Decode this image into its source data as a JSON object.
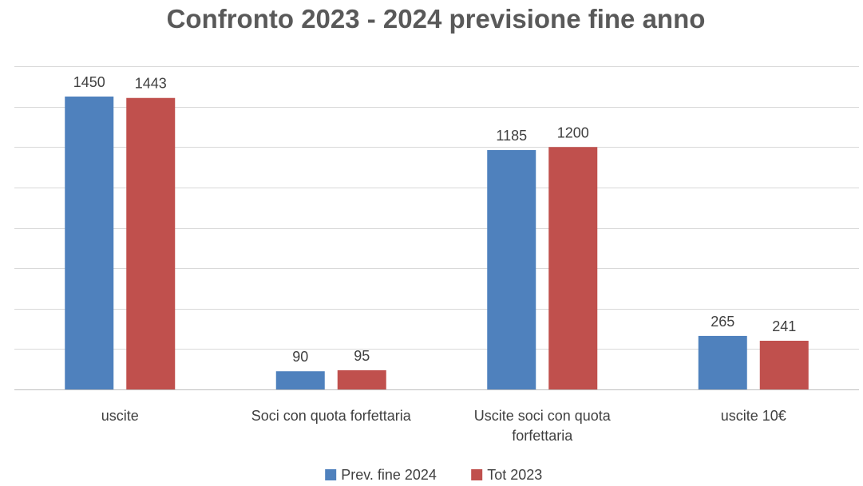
{
  "chart_data": {
    "type": "bar",
    "title": "Confronto 2023 - 2024 previsione fine anno",
    "categories": [
      [
        "uscite"
      ],
      [
        "Soci con quota forfettaria"
      ],
      [
        "Uscite soci con quota",
        "forfettaria"
      ],
      [
        "uscite 10€"
      ]
    ],
    "series": [
      {
        "name": "Prev. fine 2024",
        "color": "#4f81bd",
        "values": [
          1450,
          90,
          1185,
          265
        ]
      },
      {
        "name": "Tot 2023",
        "color": "#c0504d",
        "values": [
          1443,
          95,
          1200,
          241
        ]
      }
    ],
    "ylim": [
      0,
      1600
    ],
    "gridlines": true,
    "y_tick_labels_visible": false,
    "legend_position": "bottom"
  }
}
